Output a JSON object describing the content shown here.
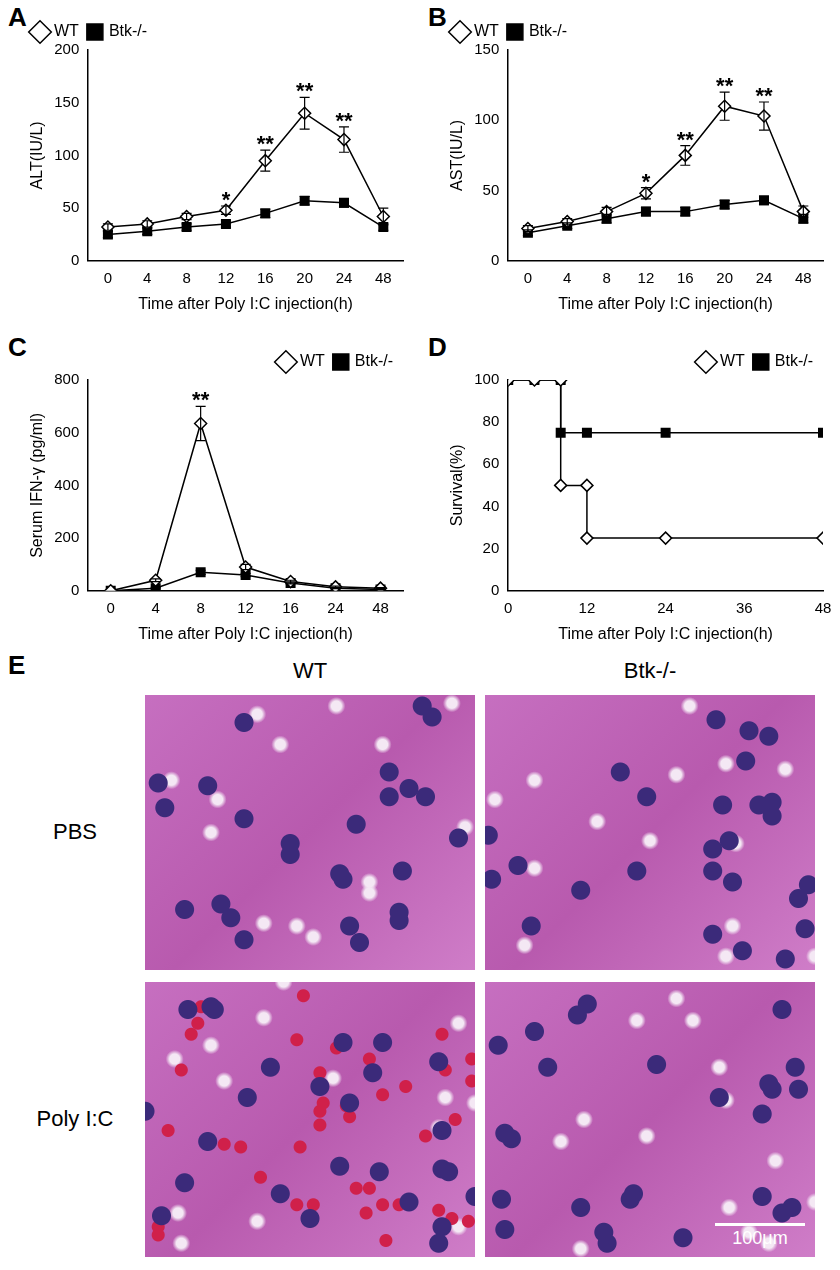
{
  "chart_data": [
    {
      "label": "A",
      "type": "line",
      "x_label": "Time after Poly I:C injection(h)",
      "y_label": "ALT(IU/L)",
      "categories": [
        "0",
        "4",
        "8",
        "12",
        "16",
        "20",
        "24",
        "48"
      ],
      "series": [
        {
          "name": "WT",
          "color": "#000000",
          "marker": "diamond_open",
          "values": [
            32,
            35,
            42,
            48,
            95,
            140,
            115,
            42
          ],
          "errors": [
            3,
            3,
            3,
            4,
            10,
            15,
            12,
            8
          ]
        },
        {
          "name": "Btk-/-",
          "color": "#000000",
          "marker": "square",
          "values": [
            25,
            28,
            32,
            35,
            45,
            57,
            55,
            32
          ],
          "errors": [
            3,
            3,
            3,
            3,
            4,
            4,
            4,
            3
          ]
        }
      ],
      "annotations": [
        {
          "category": "12",
          "text": "*"
        },
        {
          "category": "16",
          "text": "**"
        },
        {
          "category": "20",
          "text": "**"
        },
        {
          "category": "24",
          "text": "**"
        }
      ],
      "ylim": [
        0,
        200
      ],
      "yticks": [
        0,
        50,
        100,
        150,
        200
      ],
      "legend": "top-left",
      "grid": false
    },
    {
      "label": "B",
      "type": "line",
      "x_label": "Time after Poly I:C injection(h)",
      "y_label": "AST(IU/L)",
      "categories": [
        "0",
        "4",
        "8",
        "12",
        "16",
        "20",
        "24",
        "48"
      ],
      "series": [
        {
          "name": "WT",
          "color": "#000000",
          "marker": "diamond_open",
          "values": [
            23,
            28,
            35,
            48,
            75,
            110,
            103,
            35
          ],
          "errors": [
            2,
            2,
            3,
            4,
            7,
            10,
            10,
            4
          ]
        },
        {
          "name": "Btk-/-",
          "color": "#000000",
          "marker": "square",
          "values": [
            20,
            25,
            30,
            35,
            35,
            40,
            43,
            30
          ],
          "errors": [
            2,
            2,
            3,
            3,
            3,
            3,
            3,
            3
          ]
        }
      ],
      "annotations": [
        {
          "category": "12",
          "text": "*"
        },
        {
          "category": "16",
          "text": "**"
        },
        {
          "category": "20",
          "text": "**"
        },
        {
          "category": "24",
          "text": "**"
        }
      ],
      "ylim": [
        0,
        150
      ],
      "yticks": [
        0,
        50,
        100,
        150
      ],
      "legend": "top-left",
      "grid": false
    },
    {
      "label": "C",
      "type": "line",
      "x_label": "Time after Poly I:C injection(h)",
      "y_label": "Serum IFN-γ (pg/ml)",
      "categories": [
        "0",
        "4",
        "8",
        "12",
        "16",
        "24",
        "48"
      ],
      "series": [
        {
          "name": "WT",
          "color": "#000000",
          "marker": "diamond_open",
          "values": [
            0,
            40,
            635,
            90,
            35,
            15,
            10
          ],
          "errors": [
            0,
            5,
            65,
            10,
            5,
            3,
            2
          ]
        },
        {
          "name": "Btk-/-",
          "color": "#000000",
          "marker": "square",
          "values": [
            0,
            10,
            70,
            60,
            30,
            10,
            5
          ],
          "errors": [
            0,
            3,
            8,
            6,
            4,
            2,
            2
          ]
        }
      ],
      "annotations": [
        {
          "category": "8",
          "text": "**"
        }
      ],
      "ylim": [
        0,
        800
      ],
      "yticks": [
        0,
        200,
        400,
        600,
        800
      ],
      "legend": "top-right",
      "grid": false
    },
    {
      "label": "D",
      "type": "scatter",
      "x_label": "Time after Poly I:C injection(h)",
      "y_label": "Survival(%)",
      "series": [
        {
          "name": "WT",
          "color": "#000000",
          "marker": "diamond_open",
          "x": [
            0,
            4,
            8,
            8,
            12,
            12,
            24,
            48
          ],
          "values": [
            100,
            100,
            100,
            50,
            50,
            25,
            25,
            25
          ]
        },
        {
          "name": "Btk-/-",
          "color": "#000000",
          "marker": "square",
          "x": [
            0,
            4,
            8,
            8,
            12,
            24,
            48
          ],
          "values": [
            100,
            100,
            100,
            75,
            75,
            75,
            75
          ]
        }
      ],
      "xlim": [
        0,
        48
      ],
      "xticks": [
        0,
        12,
        24,
        36,
        48
      ],
      "ylim": [
        0,
        100
      ],
      "yticks": [
        0,
        20,
        40,
        60,
        80,
        100
      ],
      "legend": "top-right",
      "grid": false
    }
  ],
  "image_panel": {
    "label": "E",
    "columns": [
      "WT",
      "Btk-/-"
    ],
    "rows": [
      "PBS",
      "Poly I:C"
    ],
    "scale_bar": "100μm"
  }
}
